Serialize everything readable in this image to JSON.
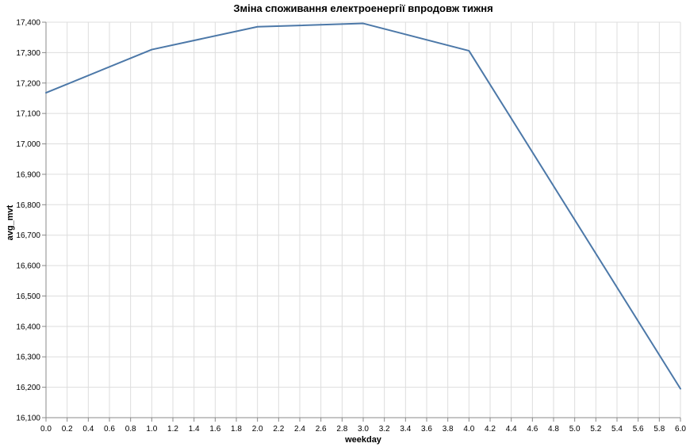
{
  "chart_data": {
    "type": "line",
    "title": "Зміна споживання електроенергії впродовж тижня",
    "xlabel": "weekday",
    "ylabel": "avg_mvt",
    "xlim": [
      0,
      6
    ],
    "ylim": [
      16100,
      17400
    ],
    "x_ticks": [
      "0.0",
      "0.2",
      "0.4",
      "0.6",
      "0.8",
      "1.0",
      "1.2",
      "1.4",
      "1.6",
      "1.8",
      "2.0",
      "2.2",
      "2.4",
      "2.6",
      "2.8",
      "3.0",
      "3.2",
      "3.4",
      "3.6",
      "3.8",
      "4.0",
      "4.2",
      "4.4",
      "4.6",
      "4.8",
      "5.0",
      "5.2",
      "5.4",
      "5.6",
      "5.8",
      "6.0"
    ],
    "y_ticks": [
      "16,100",
      "16,200",
      "16,300",
      "16,400",
      "16,500",
      "16,600",
      "16,700",
      "16,800",
      "16,900",
      "17,000",
      "17,100",
      "17,200",
      "17,300",
      "17,400"
    ],
    "grid": true,
    "line_color": "#4c78a8",
    "series": [
      {
        "x": [
          0,
          1,
          2,
          3,
          4,
          6
        ],
        "values": [
          17168,
          17310,
          17385,
          17396,
          17306,
          16195
        ]
      }
    ]
  }
}
